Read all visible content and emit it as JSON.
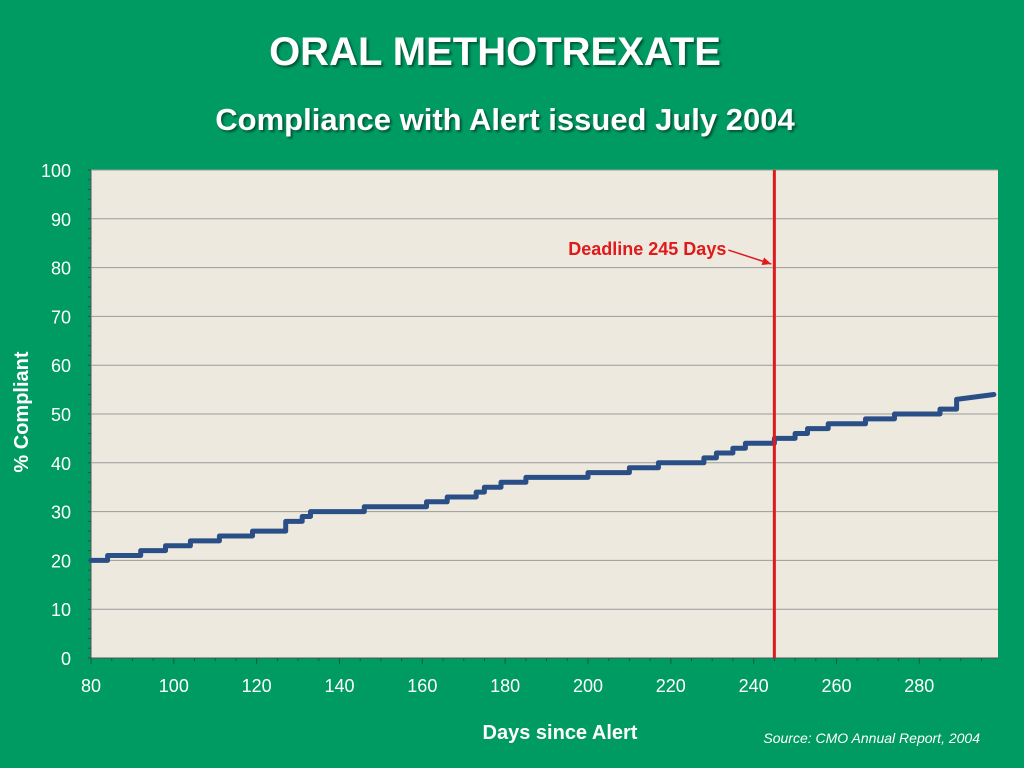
{
  "slide": {
    "title": "ORAL METHOTREXATE",
    "subtitle": "Compliance with Alert issued July 2004",
    "source": "Source: CMO Annual Report, 2004"
  },
  "colors": {
    "background": "#009a63",
    "plot_area": "#ede9df",
    "series_line": "#2a4f87",
    "deadline": "#e0191b",
    "gridline": "#9a9a9a",
    "text": "#ffffff"
  },
  "chart_data": {
    "type": "line",
    "title": "ORAL METHOTREXATE",
    "xlabel": "Days since Alert",
    "ylabel": "% Compliant",
    "xlim": [
      80,
      299
    ],
    "ylim": [
      0,
      100
    ],
    "x_ticks": [
      80,
      100,
      120,
      140,
      160,
      180,
      200,
      220,
      240,
      260,
      280
    ],
    "y_ticks": [
      0,
      10,
      20,
      30,
      40,
      50,
      60,
      70,
      80,
      90,
      100
    ],
    "grid": true,
    "legend": "none",
    "series": [
      {
        "x": [
          80,
          84,
          84,
          92,
          92,
          98,
          98,
          104,
          104,
          111,
          111,
          119,
          119,
          127,
          127,
          131,
          131,
          133,
          133,
          146,
          146,
          161,
          161,
          166,
          166,
          173,
          173,
          175,
          175,
          179,
          179,
          185,
          185,
          200,
          200,
          210,
          210,
          217,
          217,
          228,
          228,
          231,
          231,
          235,
          235,
          238,
          238,
          245,
          245,
          250,
          250,
          253,
          253,
          258,
          258,
          267,
          267,
          274,
          274,
          285,
          285,
          289,
          289,
          298
        ],
        "y": [
          20,
          20,
          21,
          21,
          22,
          22,
          23,
          23,
          24,
          24,
          25,
          25,
          26,
          26,
          28,
          28,
          29,
          29,
          30,
          30,
          31,
          31,
          32,
          32,
          33,
          33,
          34,
          34,
          35,
          35,
          36,
          36,
          37,
          37,
          38,
          38,
          39,
          39,
          40,
          40,
          41,
          41,
          42,
          42,
          43,
          43,
          44,
          44,
          45,
          45,
          46,
          46,
          47,
          47,
          48,
          48,
          49,
          49,
          50,
          50,
          51,
          51,
          53,
          54
        ]
      }
    ],
    "annotations": [
      {
        "type": "vline",
        "x": 245,
        "label": "Deadline 245 Days"
      }
    ]
  }
}
